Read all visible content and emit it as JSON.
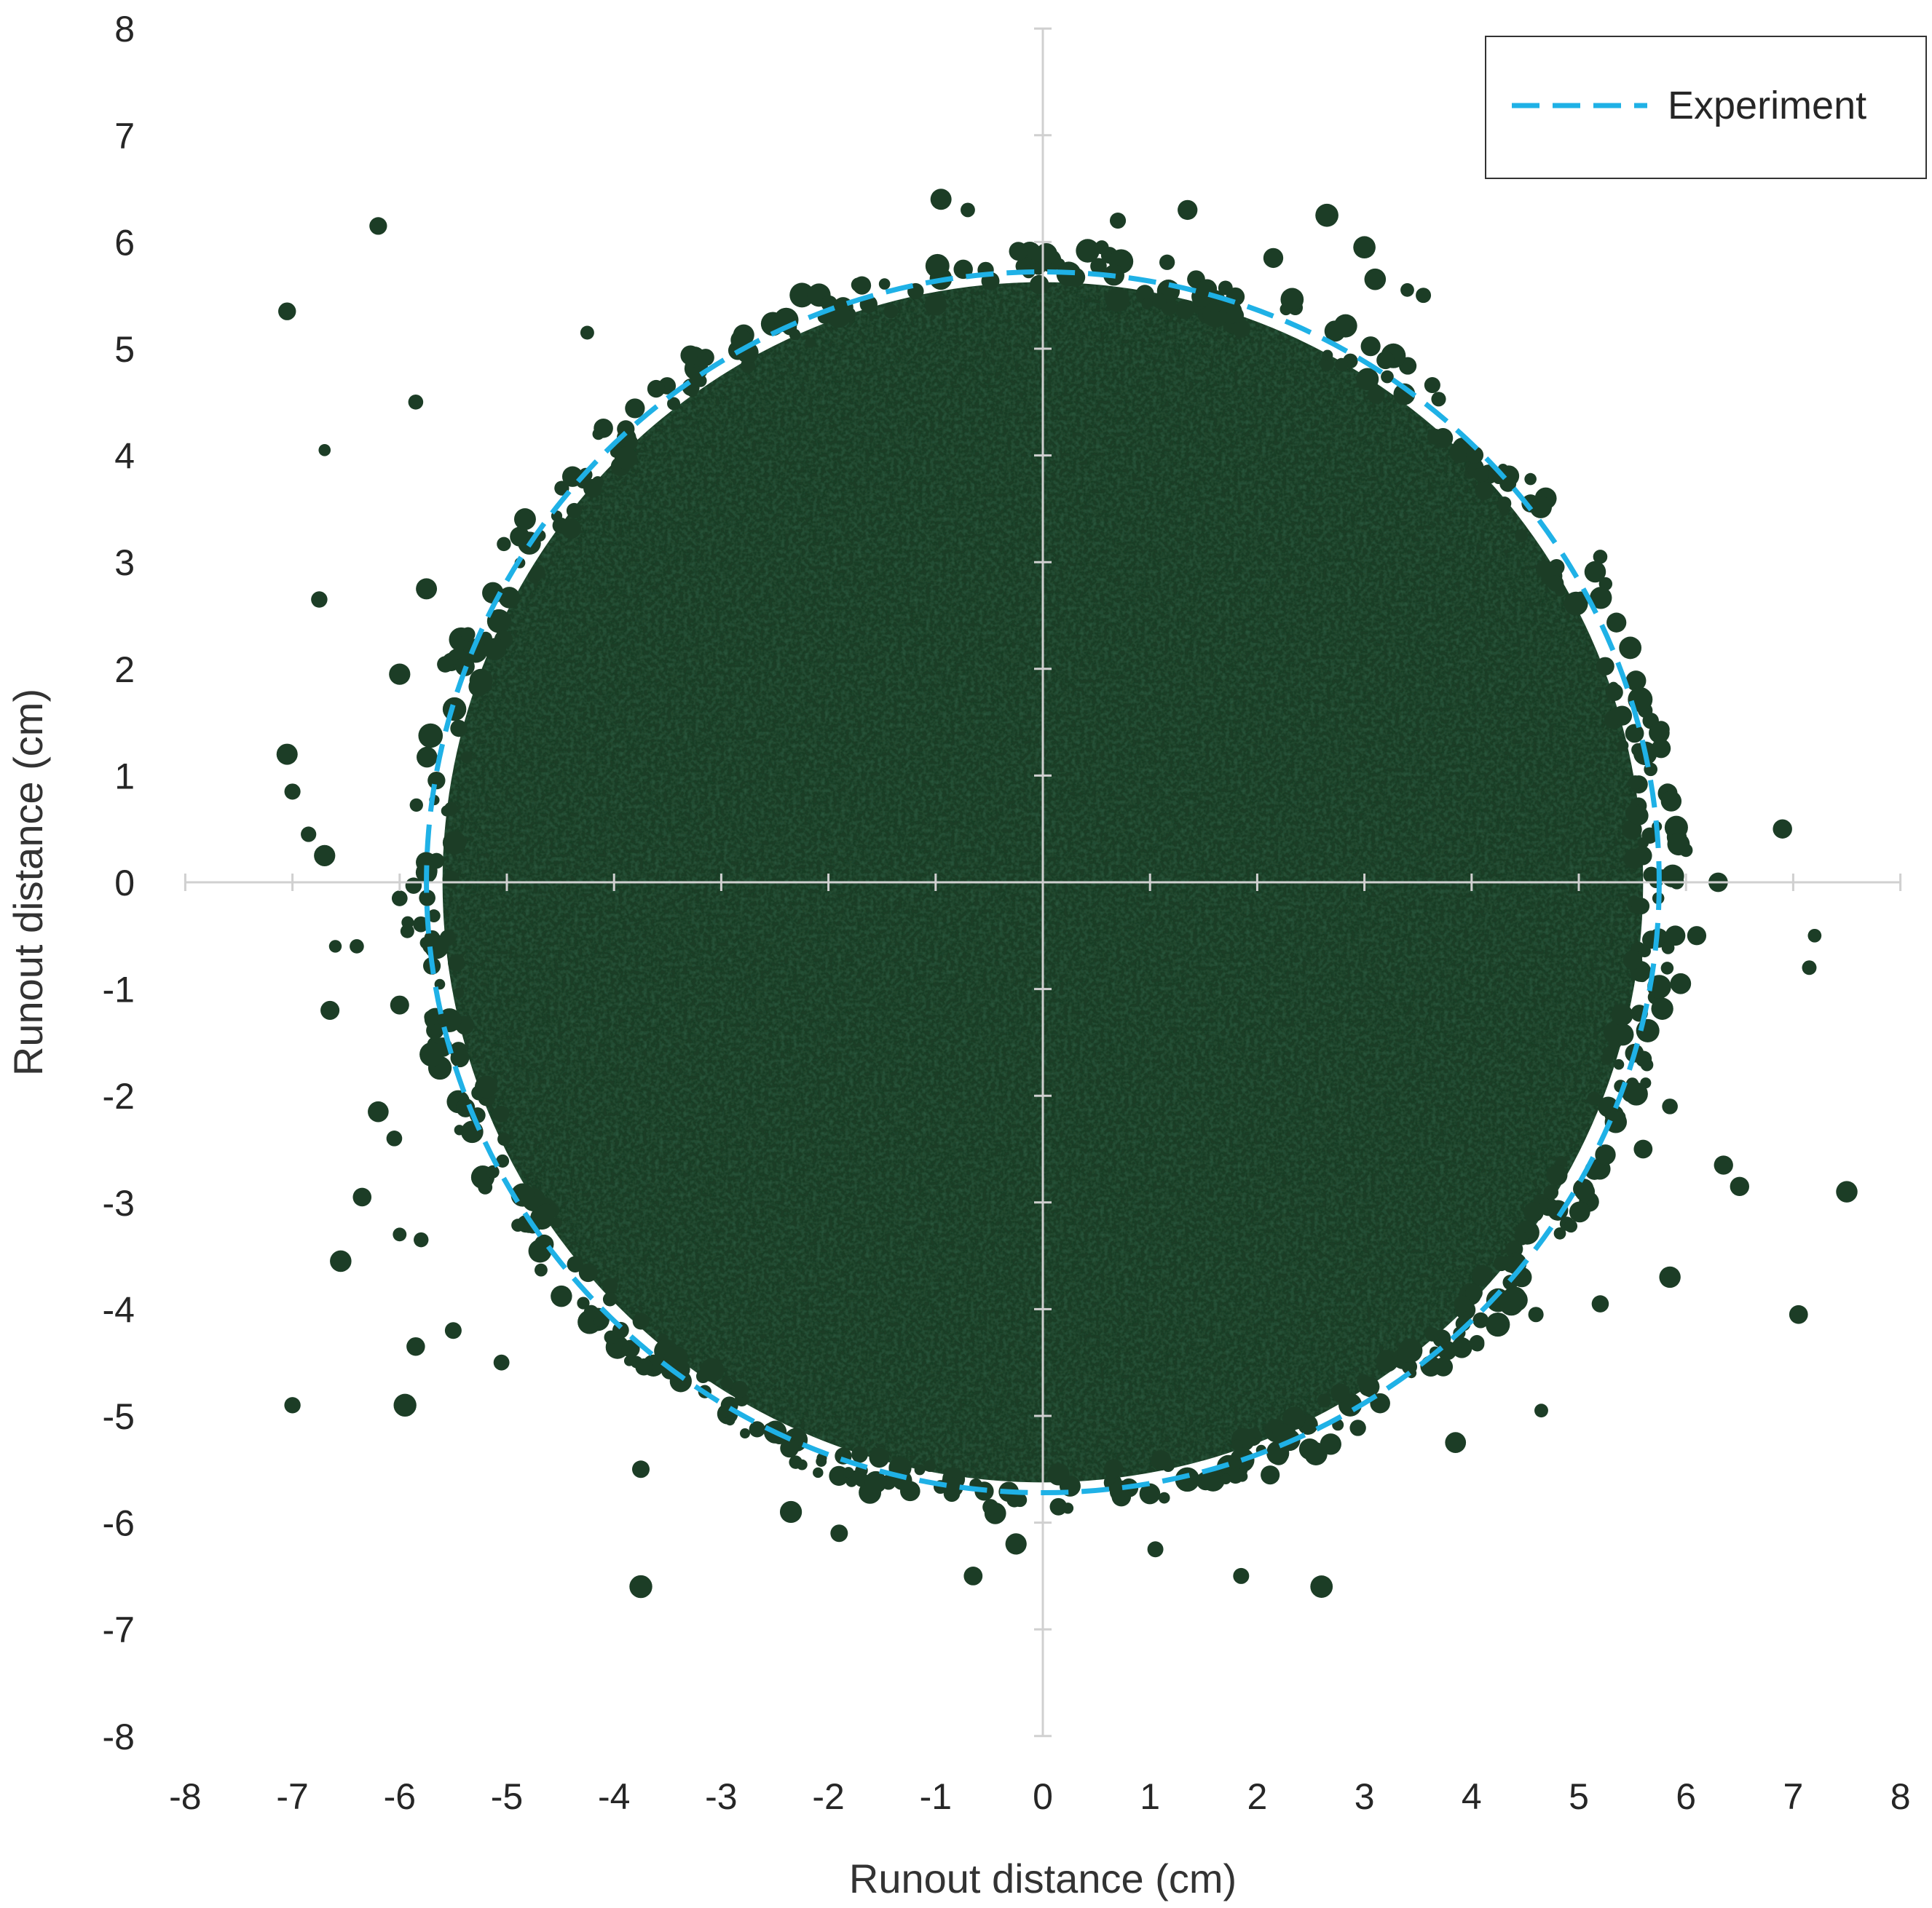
{
  "chart_data": {
    "type": "scatter",
    "title": "",
    "xlabel": "Runout distance (cm)",
    "ylabel": "Runout distance (cm)",
    "xlim": [
      -8,
      8
    ],
    "ylim": [
      -8,
      8
    ],
    "x_ticks": [
      "-8",
      "-7",
      "-6",
      "-5",
      "-4",
      "-3",
      "-2",
      "-1",
      "0",
      "1",
      "2",
      "3",
      "4",
      "5",
      "6",
      "7",
      "8"
    ],
    "y_ticks": [
      "8",
      "7",
      "6",
      "5",
      "4",
      "3",
      "2",
      "1",
      "0",
      "-1",
      "-2",
      "-3",
      "-4",
      "-5",
      "-6",
      "-7",
      "-8"
    ],
    "grid": false,
    "axes_through_origin": true,
    "legend": {
      "position": "top-right",
      "entries": [
        {
          "label": "Experiment",
          "style": "dashed",
          "color": "#1fb1e6"
        }
      ]
    },
    "series": [
      {
        "name": "Experiment",
        "type": "dashed-circle",
        "color": "#1fb1e6",
        "center": [
          0,
          0
        ],
        "radius_x": 5.75,
        "radius_y": 5.72
      },
      {
        "type": "particle-deposit",
        "color": "#1c3d26",
        "main_body": {
          "center": [
            0,
            0
          ],
          "radius": 5.6
        },
        "outlier_particles": [
          [
            -7.05,
            5.35
          ],
          [
            -6.2,
            6.15
          ],
          [
            -5.85,
            4.5
          ],
          [
            -6.7,
            4.05
          ],
          [
            -6.75,
            2.65
          ],
          [
            -6.0,
            1.95
          ],
          [
            -5.75,
            2.75
          ],
          [
            -7.05,
            1.2
          ],
          [
            -7.0,
            0.85
          ],
          [
            -6.85,
            0.45
          ],
          [
            -6.7,
            0.25
          ],
          [
            -6.0,
            -0.15
          ],
          [
            -6.6,
            -0.6
          ],
          [
            -6.4,
            -0.6
          ],
          [
            -6.65,
            -1.2
          ],
          [
            -6.0,
            -1.15
          ],
          [
            -6.2,
            -2.15
          ],
          [
            -6.05,
            -2.4
          ],
          [
            -6.35,
            -2.95
          ],
          [
            -6.0,
            -3.3
          ],
          [
            -5.8,
            -3.35
          ],
          [
            -6.55,
            -3.55
          ],
          [
            -5.85,
            -4.35
          ],
          [
            -5.5,
            -4.2
          ],
          [
            -7.0,
            -4.9
          ],
          [
            -5.95,
            -4.9
          ],
          [
            -5.05,
            -4.5
          ],
          [
            -4.25,
            5.15
          ],
          [
            -3.75,
            -5.5
          ],
          [
            -3.75,
            -6.6
          ],
          [
            -2.35,
            -5.9
          ],
          [
            -1.9,
            -6.1
          ],
          [
            -0.95,
            6.4
          ],
          [
            -0.7,
            6.3
          ],
          [
            -0.65,
            -6.5
          ],
          [
            -0.25,
            -6.2
          ],
          [
            0.7,
            6.2
          ],
          [
            0.55,
            5.95
          ],
          [
            1.35,
            6.3
          ],
          [
            2.65,
            6.25
          ],
          [
            1.05,
            -6.25
          ],
          [
            1.85,
            -6.5
          ],
          [
            2.6,
            -6.6
          ],
          [
            3.85,
            -5.25
          ],
          [
            4.65,
            -4.95
          ],
          [
            4.6,
            -4.05
          ],
          [
            5.2,
            -3.95
          ],
          [
            5.85,
            -3.7
          ],
          [
            7.05,
            -4.05
          ],
          [
            7.5,
            -2.9
          ],
          [
            6.35,
            -2.65
          ],
          [
            6.5,
            -2.85
          ],
          [
            5.6,
            -2.5
          ],
          [
            5.85,
            -2.1
          ],
          [
            6.9,
            0.5
          ],
          [
            7.2,
            -0.5
          ],
          [
            7.15,
            -0.8
          ],
          [
            6.3,
            0.0
          ],
          [
            6.0,
            0.3
          ],
          [
            5.9,
            -0.5
          ],
          [
            6.1,
            -0.5
          ],
          [
            5.95,
            -0.95
          ],
          [
            5.75,
            1.4
          ],
          [
            5.2,
            3.05
          ],
          [
            4.55,
            3.55
          ],
          [
            3.55,
            5.5
          ],
          [
            3.4,
            5.55
          ],
          [
            3.1,
            5.65
          ],
          [
            2.15,
            5.85
          ],
          [
            3.0,
            5.95
          ]
        ]
      }
    ]
  }
}
